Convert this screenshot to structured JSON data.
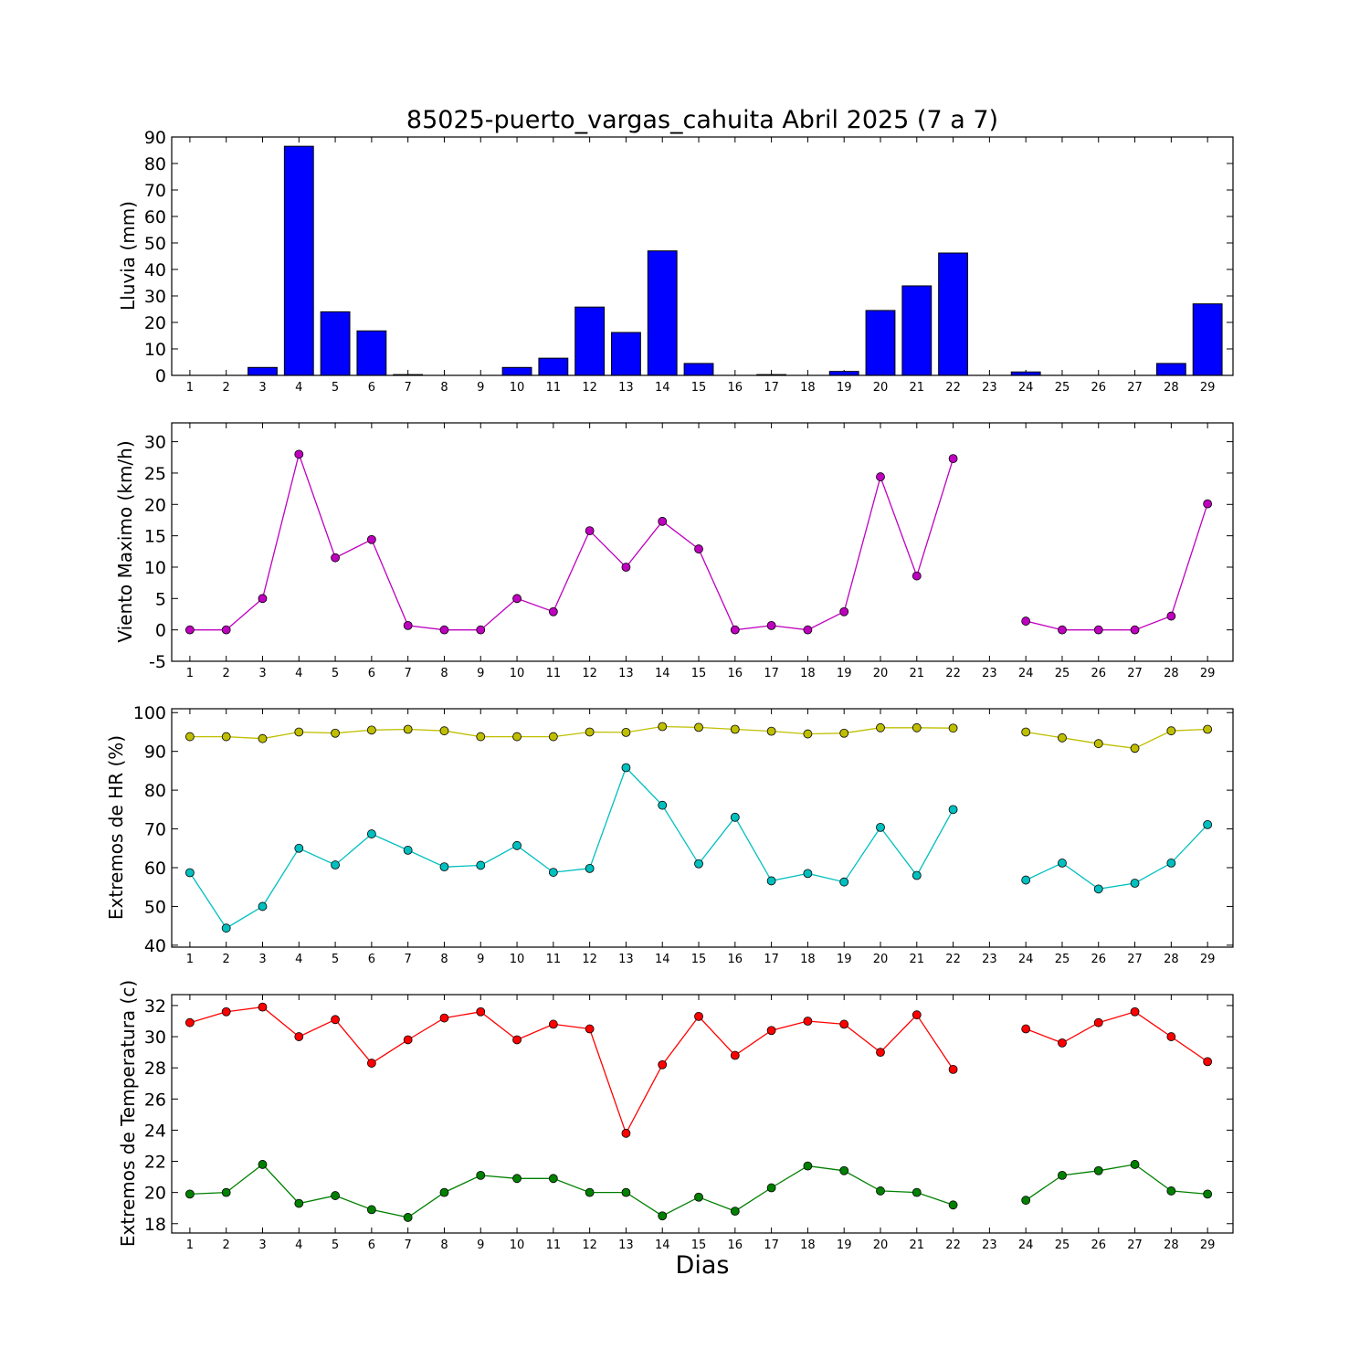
{
  "chart_data": {
    "title": "85025-puerto_vargas_cahuita Abril 2025  (7 a 7)",
    "xlabel": "Dias",
    "days": [
      1,
      2,
      3,
      4,
      5,
      6,
      7,
      8,
      9,
      10,
      11,
      12,
      13,
      14,
      15,
      16,
      17,
      18,
      19,
      20,
      21,
      22,
      23,
      24,
      25,
      26,
      27,
      28,
      29
    ],
    "panels": [
      {
        "type": "bar",
        "ylabel": "Lluvia (mm)",
        "ylim": [
          0,
          90
        ],
        "yticks": [
          0,
          10,
          20,
          30,
          40,
          50,
          60,
          70,
          80,
          90
        ],
        "series": [
          {
            "values": [
              0,
              0,
              3,
              86.5,
              24,
              16.8,
              0.3,
              0,
              0,
              3,
              6.5,
              25.8,
              16.2,
              47,
              4.5,
              0,
              0.3,
              0,
              1.5,
              24.5,
              33.8,
              46.2,
              null,
              1.3,
              0,
              0,
              0,
              4.5,
              27
            ],
            "color": "#0000ff"
          }
        ]
      },
      {
        "type": "line",
        "ylabel": "Viento Maximo (km/h)",
        "ylim": [
          -5,
          33
        ],
        "yticks": [
          -5,
          0,
          5,
          10,
          15,
          20,
          25,
          30
        ],
        "series": [
          {
            "values": [
              0,
              0,
              5,
              28,
              11.5,
              14.4,
              0.7,
              0,
              0,
              5,
              2.9,
              15.8,
              10,
              17.3,
              12.9,
              0,
              0.7,
              0,
              2.9,
              24.4,
              8.6,
              27.3,
              null,
              1.4,
              0,
              0,
              0,
              2.2,
              20.1
            ],
            "color": "#bf00bf"
          }
        ]
      },
      {
        "type": "line",
        "ylabel": "Extremos de HR (%)",
        "ylim": [
          39.5,
          101
        ],
        "yticks": [
          40,
          50,
          60,
          70,
          80,
          90,
          100
        ],
        "series": [
          {
            "values": [
              93.8,
              93.8,
              93.3,
              95,
              94.7,
              95.5,
              95.7,
              95.3,
              93.8,
              93.8,
              93.8,
              95,
              94.9,
              96.4,
              96.2,
              95.7,
              95.2,
              94.5,
              94.7,
              96.1,
              96.1,
              96,
              null,
              95,
              93.5,
              92,
              90.8,
              95.3,
              95.7
            ],
            "color": "#bfbf00"
          },
          {
            "values": [
              58.7,
              44.4,
              50,
              65,
              60.7,
              68.7,
              64.5,
              60.2,
              60.6,
              65.7,
              58.8,
              59.8,
              85.8,
              76.1,
              61,
              73,
              56.6,
              58.5,
              56.3,
              70.4,
              58,
              75,
              null,
              56.8,
              61.2,
              54.5,
              56,
              61.2,
              71.1
            ],
            "color": "#00bfbf"
          }
        ]
      },
      {
        "type": "line",
        "ylabel": "Extremos de Temperatura (c)",
        "ylim": [
          17.4,
          32.7
        ],
        "yticks": [
          18,
          20,
          22,
          24,
          26,
          28,
          30,
          32
        ],
        "series": [
          {
            "values": [
              30.9,
              31.6,
              31.9,
              30,
              31.1,
              28.3,
              29.8,
              31.2,
              31.6,
              29.8,
              30.8,
              30.5,
              23.8,
              28.2,
              31.3,
              28.8,
              30.4,
              31,
              30.8,
              29,
              31.4,
              27.9,
              null,
              30.5,
              29.6,
              30.9,
              31.6,
              30,
              28.4
            ],
            "color": "#ff0000"
          },
          {
            "values": [
              19.9,
              20,
              21.8,
              19.3,
              19.8,
              18.9,
              18.4,
              20,
              21.1,
              20.9,
              20.9,
              20,
              20,
              18.5,
              19.7,
              18.8,
              20.3,
              21.7,
              21.4,
              20.1,
              20,
              19.2,
              null,
              19.5,
              21.1,
              21.4,
              21.8,
              20.1,
              19.9
            ],
            "color": "#008000"
          }
        ]
      }
    ]
  }
}
